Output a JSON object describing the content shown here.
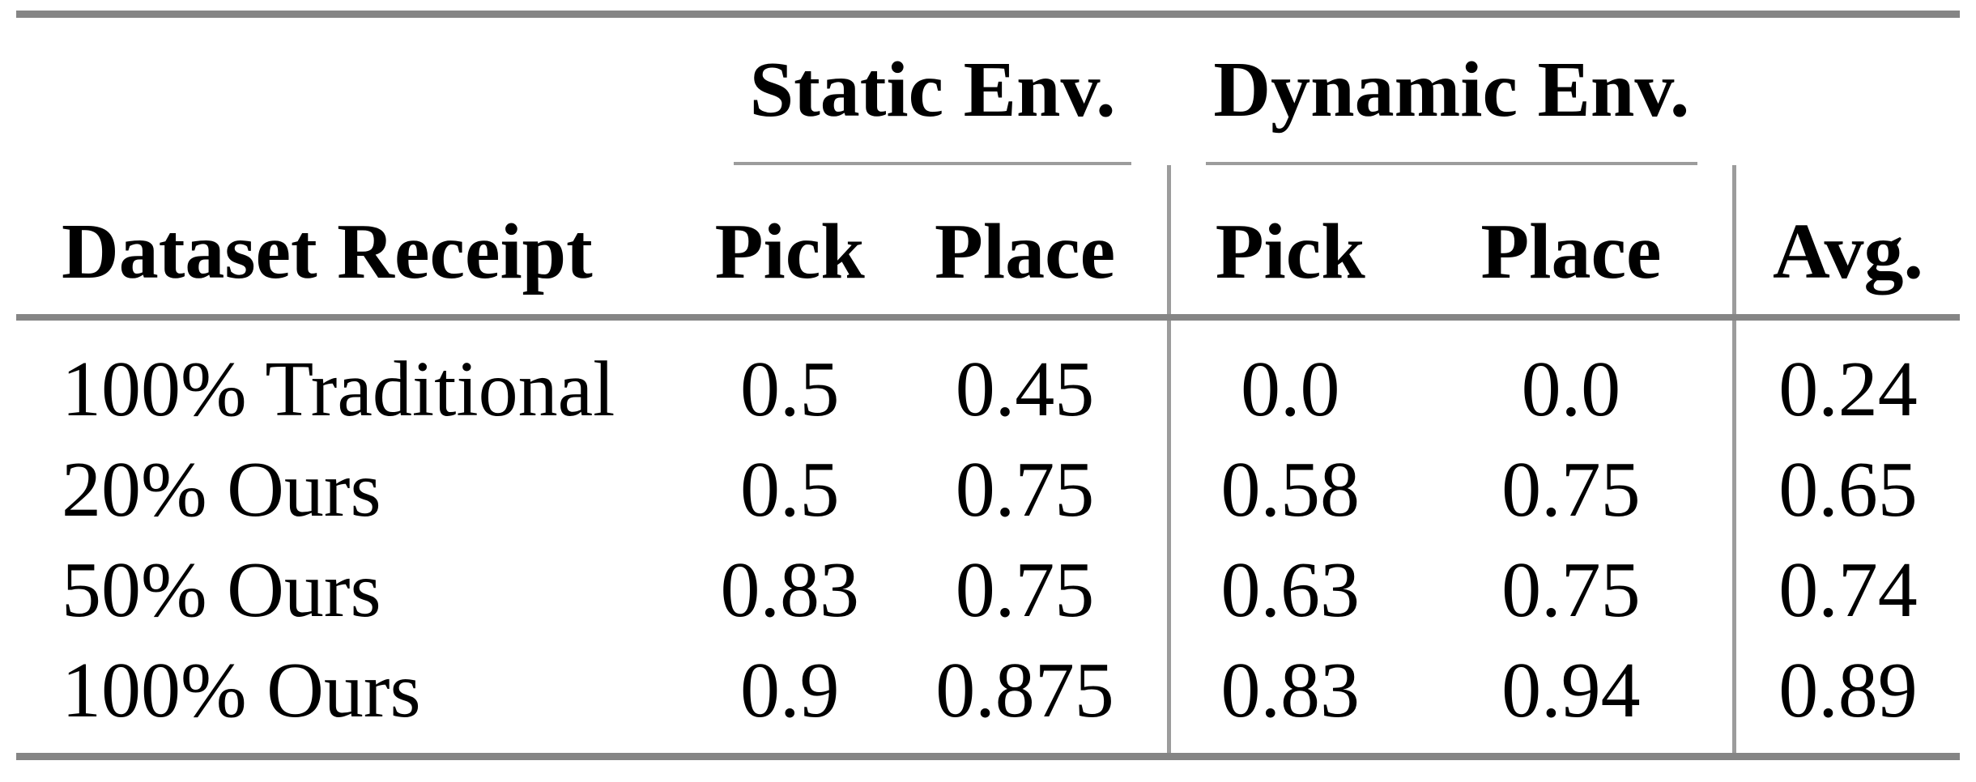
{
  "table": {
    "col_groups": [
      {
        "label": "Static Env."
      },
      {
        "label": "Dynamic Env."
      }
    ],
    "headers": {
      "dataset": "Dataset Receipt",
      "static_pick": "Pick",
      "static_place": "Place",
      "dynamic_pick": "Pick",
      "dynamic_place": "Place",
      "avg": "Avg."
    },
    "rows": [
      {
        "label": "100% Traditional",
        "values": [
          "0.5",
          "0.45",
          "0.0",
          "0.0",
          "0.24"
        ]
      },
      {
        "label": "20% Ours",
        "values": [
          "0.5",
          "0.75",
          "0.58",
          "0.75",
          "0.65"
        ]
      },
      {
        "label": "50% Ours",
        "values": [
          "0.83",
          "0.75",
          "0.63",
          "0.75",
          "0.74"
        ]
      },
      {
        "label": "100% Ours",
        "values": [
          "0.9",
          "0.875",
          "0.83",
          "0.94",
          "0.89"
        ]
      }
    ]
  },
  "colors": {
    "page_bg": "#ffffff",
    "text": "#000000",
    "rule_thick": "#858585",
    "rule_thin": "#9c9c9c"
  }
}
